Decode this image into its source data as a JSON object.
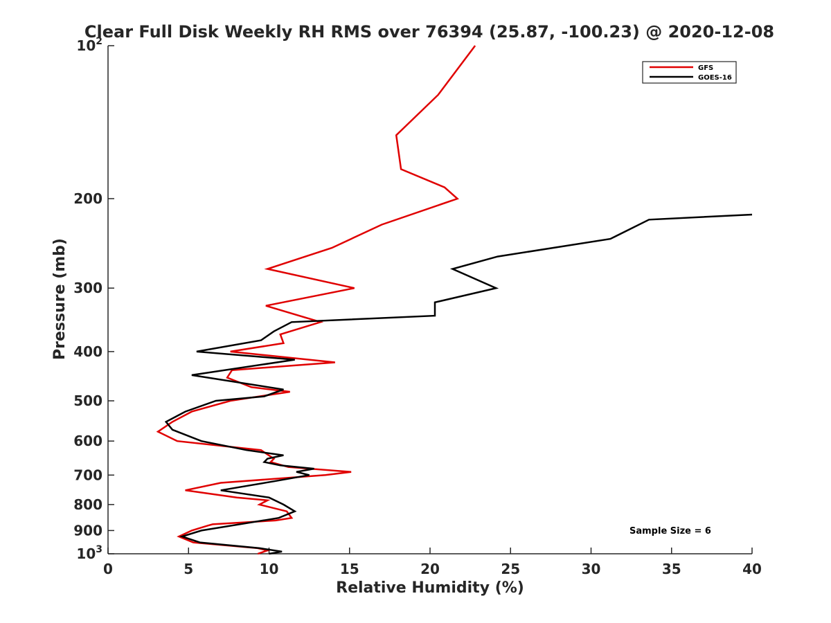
{
  "chart_data": {
    "type": "line",
    "title": "Clear Full Disk Weekly RH RMS over 76394 (25.87, -100.23) @ 2020-12-08",
    "xlabel": "Relative Humidity (%)",
    "ylabel": "Pressure (mb)",
    "xlim": [
      0,
      40
    ],
    "ylim": [
      100,
      1000
    ],
    "yscale": "log",
    "y_reversed": true,
    "grid": false,
    "legend_position": "top-right",
    "x_ticks": [
      "0",
      "5",
      "10",
      "15",
      "20",
      "25",
      "30",
      "35",
      "40"
    ],
    "y_ticks": [
      {
        "value": 100,
        "base": "10",
        "exp": "2"
      },
      {
        "value": 200,
        "label": "200"
      },
      {
        "value": 300,
        "label": "300"
      },
      {
        "value": 400,
        "label": "400"
      },
      {
        "value": 500,
        "label": "500"
      },
      {
        "value": 600,
        "label": "600"
      },
      {
        "value": 700,
        "label": "700"
      },
      {
        "value": 800,
        "label": "800"
      },
      {
        "value": 900,
        "label": "900"
      },
      {
        "value": 1000,
        "base": "10",
        "exp": "3"
      }
    ],
    "annotation": "Sample Size = 6",
    "series": [
      {
        "name": "GFS",
        "color": "#e00000",
        "points": [
          [
            22.8,
            100
          ],
          [
            20.5,
            125
          ],
          [
            17.9,
            150
          ],
          [
            18.2,
            175
          ],
          [
            20.9,
            190
          ],
          [
            21.7,
            200
          ],
          [
            17.0,
            225
          ],
          [
            13.9,
            250
          ],
          [
            9.9,
            275
          ],
          [
            15.3,
            300
          ],
          [
            9.8,
            325
          ],
          [
            13.2,
            350
          ],
          [
            10.7,
            370
          ],
          [
            10.9,
            385
          ],
          [
            7.6,
            400
          ],
          [
            14.1,
            420
          ],
          [
            7.7,
            435
          ],
          [
            7.4,
            450
          ],
          [
            8.9,
            470
          ],
          [
            11.3,
            480
          ],
          [
            7.6,
            500
          ],
          [
            5.2,
            525
          ],
          [
            4.0,
            550
          ],
          [
            3.1,
            575
          ],
          [
            4.3,
            600
          ],
          [
            9.5,
            625
          ],
          [
            10.3,
            650
          ],
          [
            10.1,
            660
          ],
          [
            11.2,
            675
          ],
          [
            15.1,
            690
          ],
          [
            13.5,
            700
          ],
          [
            7.0,
            725
          ],
          [
            4.8,
            750
          ],
          [
            8.0,
            775
          ],
          [
            9.9,
            785
          ],
          [
            9.4,
            800
          ],
          [
            11.1,
            825
          ],
          [
            11.4,
            850
          ],
          [
            10.4,
            860
          ],
          [
            6.5,
            875
          ],
          [
            6.2,
            880
          ],
          [
            5.2,
            900
          ],
          [
            4.4,
            925
          ],
          [
            5.3,
            950
          ],
          [
            9.3,
            975
          ],
          [
            9.9,
            985
          ],
          [
            9.3,
            1000
          ]
        ]
      },
      {
        "name": "GOES-16",
        "color": "#000000",
        "points": [
          [
            40.0,
            215
          ],
          [
            33.6,
            220
          ],
          [
            31.2,
            240
          ],
          [
            24.2,
            260
          ],
          [
            21.4,
            275
          ],
          [
            24.1,
            300
          ],
          [
            20.3,
            320
          ],
          [
            20.3,
            340
          ],
          [
            11.4,
            350
          ],
          [
            10.3,
            365
          ],
          [
            9.5,
            380
          ],
          [
            5.5,
            400
          ],
          [
            11.6,
            415
          ],
          [
            5.2,
            445
          ],
          [
            10.9,
            475
          ],
          [
            9.7,
            490
          ],
          [
            6.7,
            500
          ],
          [
            4.8,
            525
          ],
          [
            3.6,
            550
          ],
          [
            4.0,
            570
          ],
          [
            5.8,
            600
          ],
          [
            8.6,
            625
          ],
          [
            10.9,
            640
          ],
          [
            9.9,
            650
          ],
          [
            9.7,
            660
          ],
          [
            10.7,
            670
          ],
          [
            12.8,
            680
          ],
          [
            11.7,
            690
          ],
          [
            12.5,
            700
          ],
          [
            10.3,
            720
          ],
          [
            7.0,
            750
          ],
          [
            10.0,
            775
          ],
          [
            10.9,
            800
          ],
          [
            11.6,
            825
          ],
          [
            10.6,
            850
          ],
          [
            5.8,
            900
          ],
          [
            4.6,
            925
          ],
          [
            5.7,
            950
          ],
          [
            9.4,
            975
          ],
          [
            10.8,
            990
          ],
          [
            10.0,
            1000
          ]
        ]
      }
    ]
  }
}
